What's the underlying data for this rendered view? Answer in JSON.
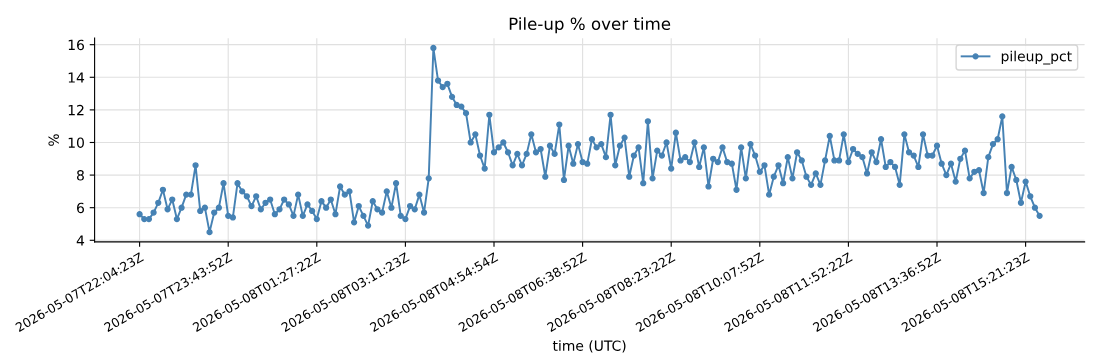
{
  "chart_data": {
    "type": "line",
    "title": "Pile-up % over time",
    "xlabel": "time (UTC)",
    "ylabel": "%",
    "categories": [
      "2026-05-07T22:04:23Z",
      null,
      null,
      null,
      null,
      null,
      null,
      null,
      null,
      null,
      null,
      null,
      null,
      null,
      null,
      null,
      null,
      null,
      null,
      "2026-05-07T23:43:52Z",
      null,
      null,
      null,
      null,
      null,
      null,
      null,
      null,
      null,
      null,
      null,
      null,
      null,
      null,
      null,
      null,
      null,
      null,
      "2026-05-08T01:27:22Z",
      null,
      null,
      null,
      null,
      null,
      null,
      null,
      null,
      null,
      null,
      null,
      null,
      null,
      null,
      null,
      null,
      null,
      null,
      "2026-05-08T03:11:23Z",
      null,
      null,
      null,
      null,
      null,
      null,
      null,
      null,
      null,
      null,
      null,
      null,
      null,
      null,
      null,
      null,
      null,
      null,
      "2026-05-08T04:54:54Z",
      null,
      null,
      null,
      null,
      null,
      null,
      null,
      null,
      null,
      null,
      null,
      null,
      null,
      null,
      null,
      null,
      null,
      null,
      "2026-05-08T06:38:52Z",
      null,
      null,
      null,
      null,
      null,
      null,
      null,
      null,
      null,
      null,
      null,
      null,
      null,
      null,
      null,
      null,
      null,
      null,
      "2026-05-08T08:23:22Z",
      null,
      null,
      null,
      null,
      null,
      null,
      null,
      null,
      null,
      null,
      null,
      null,
      null,
      null,
      null,
      null,
      null,
      null,
      "2026-05-08T10:07:52Z",
      null,
      null,
      null,
      null,
      null,
      null,
      null,
      null,
      null,
      null,
      null,
      null,
      null,
      null,
      null,
      null,
      null,
      null,
      "2026-05-08T11:52:22Z",
      null,
      null,
      null,
      null,
      null,
      null,
      null,
      null,
      null,
      null,
      null,
      null,
      null,
      null,
      null,
      null,
      null,
      null,
      "2026-05-08T13:36:52Z",
      null,
      null,
      null,
      null,
      null,
      null,
      null,
      null,
      null,
      null,
      null,
      null,
      null,
      null,
      null,
      null,
      null,
      null,
      "2026-05-08T15:21:23Z",
      null,
      null,
      null
    ],
    "series": [
      {
        "name": "pileup_pct",
        "color": "#4682b4",
        "values": [
          5.6,
          5.3,
          5.3,
          5.7,
          6.3,
          7.1,
          5.9,
          6.5,
          5.3,
          6.0,
          6.8,
          6.8,
          8.6,
          5.8,
          6.0,
          4.5,
          5.7,
          6.0,
          7.5,
          5.5,
          5.4,
          7.5,
          7.0,
          6.7,
          6.1,
          6.7,
          5.9,
          6.3,
          6.5,
          5.6,
          5.9,
          6.5,
          6.2,
          5.5,
          6.8,
          5.5,
          6.2,
          5.8,
          5.3,
          6.4,
          6.0,
          6.5,
          5.6,
          7.3,
          6.8,
          7.0,
          5.1,
          6.1,
          5.5,
          4.9,
          6.4,
          5.9,
          5.7,
          7.0,
          6.0,
          7.5,
          5.5,
          5.3,
          6.1,
          5.9,
          6.8,
          5.7,
          7.8,
          15.8,
          13.8,
          13.4,
          13.6,
          12.8,
          12.3,
          12.2,
          11.8,
          10.0,
          10.5,
          9.2,
          8.4,
          11.7,
          9.4,
          9.7,
          10.0,
          9.4,
          8.6,
          9.3,
          8.6,
          9.3,
          10.5,
          9.4,
          9.6,
          7.9,
          9.8,
          9.3,
          11.1,
          7.7,
          9.8,
          8.7,
          9.9,
          8.8,
          8.7,
          10.2,
          9.7,
          9.9,
          9.1,
          11.7,
          8.6,
          9.8,
          10.3,
          7.9,
          9.2,
          9.7,
          7.5,
          11.3,
          7.8,
          9.5,
          9.2,
          10.0,
          8.4,
          10.6,
          8.9,
          9.1,
          8.8,
          10.0,
          8.5,
          9.7,
          7.3,
          9.0,
          8.8,
          9.7,
          8.8,
          8.7,
          7.1,
          9.7,
          7.8,
          9.9,
          9.2,
          8.2,
          8.6,
          6.8,
          7.9,
          8.6,
          7.5,
          9.1,
          7.8,
          9.4,
          8.9,
          7.9,
          7.4,
          8.1,
          7.4,
          8.9,
          10.4,
          8.9,
          8.9,
          10.5,
          8.8,
          9.6,
          9.3,
          9.1,
          8.1,
          9.4,
          8.8,
          10.2,
          8.5,
          8.8,
          8.5,
          7.4,
          10.5,
          9.4,
          9.2,
          8.5,
          10.5,
          9.2,
          9.2,
          9.8,
          8.7,
          8.0,
          8.7,
          7.6,
          9.0,
          9.5,
          7.8,
          8.2,
          8.3,
          6.9,
          9.1,
          9.9,
          10.2,
          11.6,
          6.9,
          8.5,
          7.7,
          6.3,
          7.6,
          6.7,
          6.0,
          5.5
        ]
      }
    ],
    "ylim": [
      3.9,
      16.4
    ],
    "yticks": [
      4,
      6,
      8,
      10,
      12,
      14,
      16
    ],
    "grid": true,
    "legend": "top right",
    "marker": "circle",
    "line_style": "solid"
  }
}
